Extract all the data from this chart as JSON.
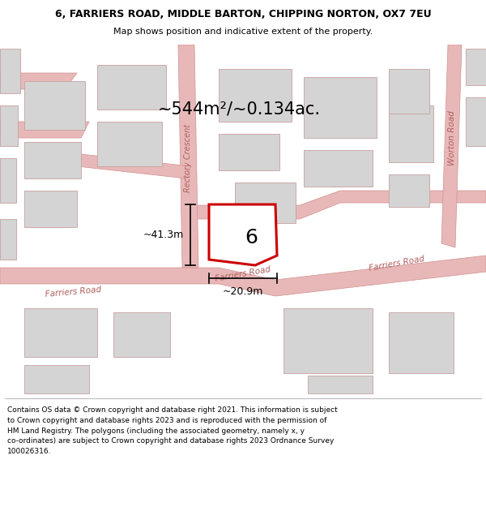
{
  "title_line1": "6, FARRIERS ROAD, MIDDLE BARTON, CHIPPING NORTON, OX7 7EU",
  "title_line2": "Map shows position and indicative extent of the property.",
  "footer_text": "Contains OS data © Crown copyright and database right 2021. This information is subject\nto Crown copyright and database rights 2023 and is reproduced with the permission of\nHM Land Registry. The polygons (including the associated geometry, namely x, y\nco-ordinates) are subject to Crown copyright and database rights 2023 Ordnance Survey\n100026316.",
  "area_text": "~544m²/~0.134ac.",
  "width_text": "~20.9m",
  "height_text": "~41.3m",
  "label_text": "6",
  "road_label_rectory": "Rectory Crescent",
  "road_label_farriers1": "Farriers Road",
  "road_label_farriers2": "Farriers Road",
  "road_label_farriers3": "Farriers Road",
  "road_label_worton": "Worton Road",
  "map_bg": "#f2f0f0",
  "plot_stroke": "#cc0000",
  "plot_fill": "#ffffff",
  "road_fill": "#e8b8b8",
  "road_edge": "#d09090",
  "building_fill": "#d4d4d4",
  "building_edge": "#c8a0a0",
  "fig_width": 6.0,
  "fig_height": 6.25
}
